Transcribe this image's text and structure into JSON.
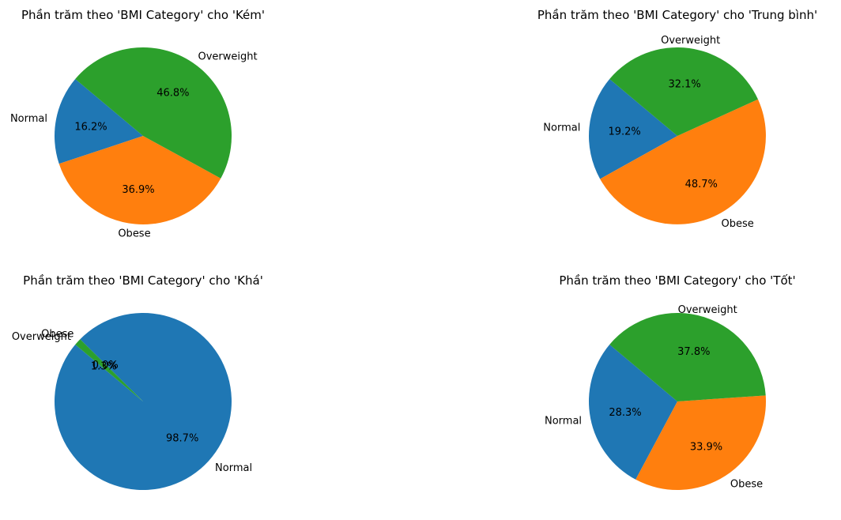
{
  "chart_data": [
    {
      "type": "pie",
      "title": "Phần trăm theo 'BMI Category' cho 'Kém'",
      "categories": [
        "Normal",
        "Obese",
        "Overweight"
      ],
      "values": [
        16.2,
        36.9,
        46.8
      ],
      "value_labels": [
        "16.2%",
        "36.9%",
        "46.8%"
      ],
      "colors": [
        "#1f77b4",
        "#ff7f0e",
        "#2ca02c"
      ]
    },
    {
      "type": "pie",
      "title": "Phần trăm theo 'BMI Category' cho 'Trung bình'",
      "categories": [
        "Normal",
        "Obese",
        "Overweight"
      ],
      "values": [
        19.2,
        48.7,
        32.1
      ],
      "value_labels": [
        "19.2%",
        "48.7%",
        "32.1%"
      ],
      "colors": [
        "#1f77b4",
        "#ff7f0e",
        "#2ca02c"
      ]
    },
    {
      "type": "pie",
      "title": "Phần trăm theo 'BMI Category' cho 'Khá'",
      "categories": [
        "Normal",
        "Obese",
        "Overweight"
      ],
      "values": [
        98.7,
        0.0,
        1.3
      ],
      "value_labels": [
        "98.7%",
        "0.0%",
        "1.3%"
      ],
      "colors": [
        "#1f77b4",
        "#ff7f0e",
        "#2ca02c"
      ]
    },
    {
      "type": "pie",
      "title": "Phần trăm theo 'BMI Category' cho 'Tốt'",
      "categories": [
        "Normal",
        "Obese",
        "Overweight"
      ],
      "values": [
        28.3,
        33.9,
        37.8
      ],
      "value_labels": [
        "28.3%",
        "33.9%",
        "37.8%"
      ],
      "colors": [
        "#1f77b4",
        "#ff7f0e",
        "#2ca02c"
      ]
    }
  ]
}
